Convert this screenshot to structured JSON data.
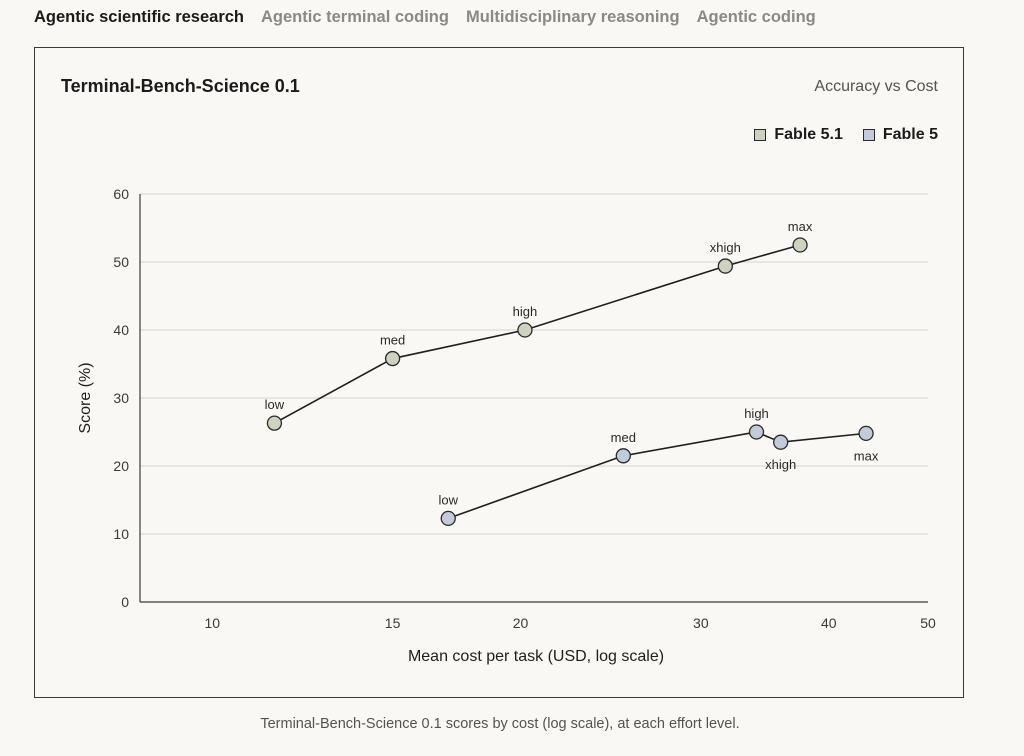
{
  "tabs": [
    {
      "label": "Agentic scientific research",
      "active": true
    },
    {
      "label": "Agentic terminal coding",
      "active": false
    },
    {
      "label": "Multidisciplinary reasoning",
      "active": false
    },
    {
      "label": "Agentic coding",
      "active": false
    }
  ],
  "caption": "Terminal-Bench-Science 0.1 scores by cost (log scale), at each effort level.",
  "colors": {
    "fable51": "#cdd3bf",
    "fable5": "#c3cad9",
    "line": "#1f1f1f",
    "grid": "#d6d4ce"
  },
  "chart_data": {
    "type": "line",
    "title": "Terminal-Bench-Science 0.1",
    "subtitle": "Accuracy vs Cost",
    "xlabel": "Mean cost per task (USD, log scale)",
    "ylabel": "Score (%)",
    "xscale": "log",
    "xlim": [
      8.5,
      50
    ],
    "ylim": [
      0,
      60
    ],
    "xticks": [
      10,
      15,
      20,
      30,
      40,
      50
    ],
    "yticks": [
      0,
      10,
      20,
      30,
      40,
      50,
      60
    ],
    "grid": "horizontal",
    "legend": "top-right",
    "series": [
      {
        "name": "Fable 5.1",
        "color_key": "fable51",
        "points": [
          {
            "x": 11.5,
            "y": 26.3,
            "label": "low",
            "label_pos": "above"
          },
          {
            "x": 15.0,
            "y": 35.8,
            "label": "med",
            "label_pos": "above"
          },
          {
            "x": 20.2,
            "y": 40.0,
            "label": "high",
            "label_pos": "above"
          },
          {
            "x": 31.7,
            "y": 49.4,
            "label": "xhigh",
            "label_pos": "above"
          },
          {
            "x": 37.5,
            "y": 52.5,
            "label": "max",
            "label_pos": "above"
          }
        ]
      },
      {
        "name": "Fable 5",
        "color_key": "fable5",
        "points": [
          {
            "x": 17.0,
            "y": 12.3,
            "label": "low",
            "label_pos": "above"
          },
          {
            "x": 25.2,
            "y": 21.5,
            "label": "med",
            "label_pos": "above"
          },
          {
            "x": 34.0,
            "y": 25.0,
            "label": "high",
            "label_pos": "above"
          },
          {
            "x": 35.9,
            "y": 23.5,
            "label": "xhigh",
            "label_pos": "below"
          },
          {
            "x": 43.5,
            "y": 24.8,
            "label": "max",
            "label_pos": "below"
          }
        ]
      }
    ]
  }
}
